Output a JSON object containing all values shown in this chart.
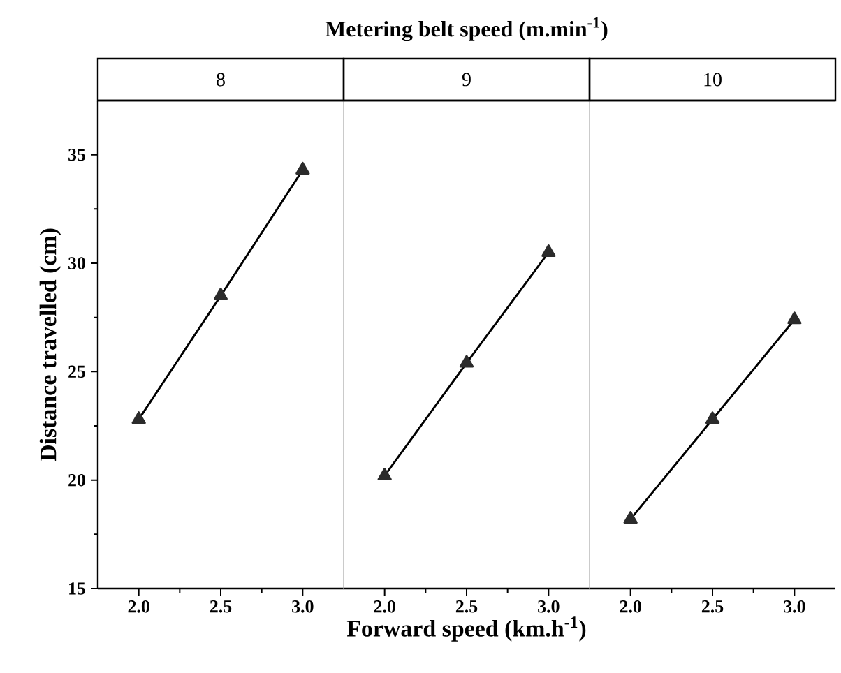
{
  "chart_data": [
    {
      "type": "line",
      "title": "8",
      "ylabel": "Distance travelled (cm)",
      "x": [
        2,
        2.5,
        3
      ],
      "values": [
        22.8,
        28.5,
        34.3
      ],
      "color": "#2b2b2b",
      "marker": "triangle",
      "xlim": [
        1.75,
        3.25
      ],
      "ylim": [
        15,
        37.5
      ],
      "xticks": [
        {
          "value": 2,
          "label": "2.0"
        },
        {
          "value": 2.5,
          "label": "2.5"
        },
        {
          "value": 3,
          "label": "3.0"
        }
      ],
      "yticks": [
        15,
        20,
        25,
        30,
        35
      ]
    },
    {
      "type": "line",
      "title": "9",
      "xlabel": "Forward speed (km.h$^{-1}$)",
      "annotations": [
        "Metering belt speed (m.min$^{-1}$)"
      ],
      "x": [
        2,
        2.5,
        3
      ],
      "values": [
        20.2,
        25.4,
        30.5
      ],
      "color": "#2b2b2b",
      "marker": "triangle",
      "xlim": [
        1.75,
        3.25
      ],
      "ylim": [
        15,
        37.5
      ],
      "xticks": [
        {
          "value": 2,
          "label": "2.0"
        },
        {
          "value": 2.5,
          "label": "2.5"
        },
        {
          "value": 3,
          "label": "3.0"
        }
      ],
      "tick_labels": "x"
    },
    {
      "type": "line",
      "title": "10",
      "x": [
        2,
        2.5,
        3
      ],
      "values": [
        18.2,
        22.8,
        27.4
      ],
      "color": "#2b2b2b",
      "marker": "triangle",
      "xlim": [
        1.75,
        3.25
      ],
      "ylim": [
        15,
        37.5
      ],
      "xticks": [
        {
          "value": 2,
          "label": "2.0"
        },
        {
          "value": 2.5,
          "label": "2.5"
        },
        {
          "value": 3,
          "label": "3.0"
        }
      ],
      "tick_labels": "x"
    }
  ]
}
